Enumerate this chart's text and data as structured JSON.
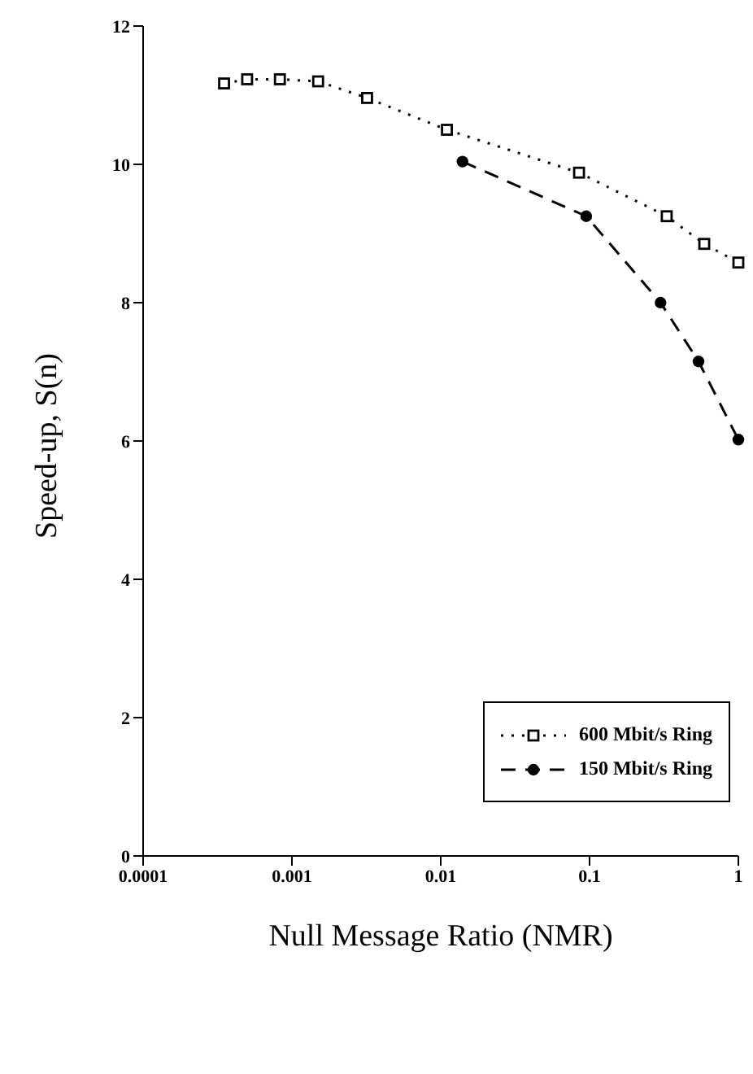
{
  "chart_data": {
    "type": "line",
    "xlabel": "Null Message Ratio (NMR)",
    "ylabel": "Speed-up, S(n)",
    "log": "x",
    "xlim": [
      0.0001,
      1
    ],
    "xticks": [
      0.0001,
      0.001,
      0.01,
      0.1,
      1
    ],
    "ylim": [
      0,
      12
    ],
    "yticks": [
      0,
      2,
      4,
      6,
      8,
      10,
      12
    ],
    "grid": false,
    "legend": "bottom right",
    "series": [
      {
        "name": "600 Mbit/s Ring",
        "color": "#000000",
        "marker": "square",
        "line_style": "dotted",
        "x": [
          0.00035,
          0.0005,
          0.00083,
          0.0015,
          0.0032,
          0.011,
          0.085,
          0.33,
          0.59,
          1
        ],
        "values": [
          11.17,
          11.23,
          11.23,
          11.2,
          10.96,
          10.5,
          9.88,
          9.25,
          8.85,
          8.58
        ]
      },
      {
        "name": "150 Mbit/s Ring",
        "color": "#000000",
        "marker": "circle",
        "line_style": "dashed",
        "x": [
          0.014,
          0.095,
          0.3,
          0.54,
          1
        ],
        "values": [
          10.04,
          9.25,
          8.0,
          7.15,
          6.02
        ]
      }
    ]
  }
}
